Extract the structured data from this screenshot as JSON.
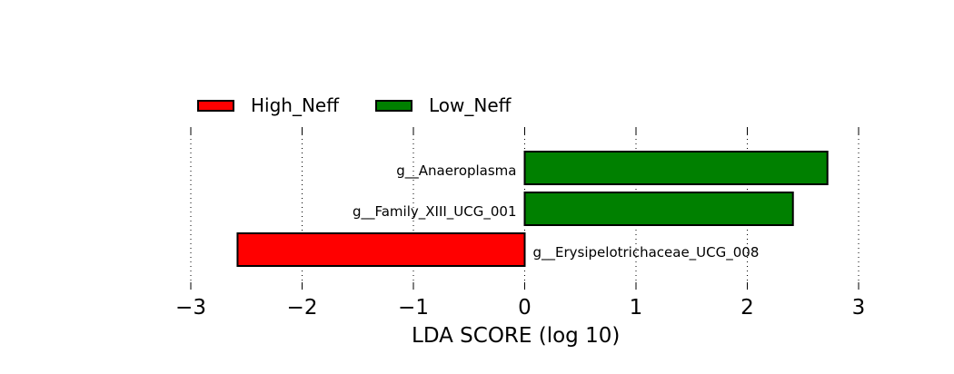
{
  "chart_data": {
    "type": "bar",
    "orientation": "horizontal",
    "xlabel": "LDA SCORE (log 10)",
    "xlim": [
      -3,
      3
    ],
    "xticks": [
      "−3",
      "−2",
      "−1",
      "0",
      "1",
      "2",
      "3"
    ],
    "grid": "vertical dotted",
    "legend_position": "top-left",
    "series": [
      {
        "name": "High_Neff",
        "color": "#ff0000"
      },
      {
        "name": "Low_Neff",
        "color": "#008000"
      }
    ],
    "bars": [
      {
        "label": "g__Anaeroplasma",
        "value": 2.72,
        "group": "Low_Neff",
        "color": "#008000"
      },
      {
        "label": "g__Family_XIII_UCG_001",
        "value": 2.41,
        "group": "Low_Neff",
        "color": "#008000"
      },
      {
        "label": "g__Erysipelotrichaceae_UCG_008",
        "value": -2.58,
        "group": "High_Neff",
        "color": "#ff0000"
      }
    ]
  }
}
